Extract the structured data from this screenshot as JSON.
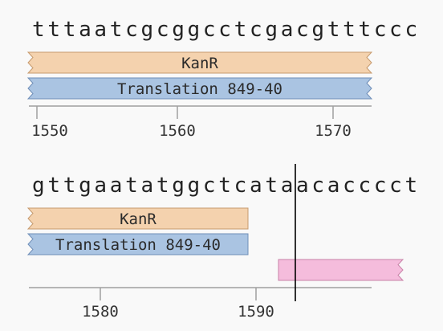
{
  "colors": {
    "kanr": "#f4d2ae",
    "kanr_stroke": "#c69a6e",
    "translation": "#aac4e2",
    "translation_stroke": "#6f8eb8",
    "pink_feature": "#f5bcdc",
    "pink_stroke": "#c882a8",
    "axis": "#a0a0a0",
    "cursor": "#000000"
  },
  "rows": [
    {
      "sequence": "tttaatcgcggcctcgacgtttccc",
      "features": [
        {
          "label": "KanR"
        },
        {
          "label": "Translation 849-40"
        }
      ],
      "ticks": [
        "1550",
        "1560",
        "1570"
      ]
    },
    {
      "sequence": "gttgaatatggctcataacacccct",
      "features": [
        {
          "label": "KanR"
        },
        {
          "label": "Translation 849-40"
        },
        {
          "label": ""
        }
      ],
      "ticks": [
        "1580",
        "1590"
      ]
    }
  ]
}
